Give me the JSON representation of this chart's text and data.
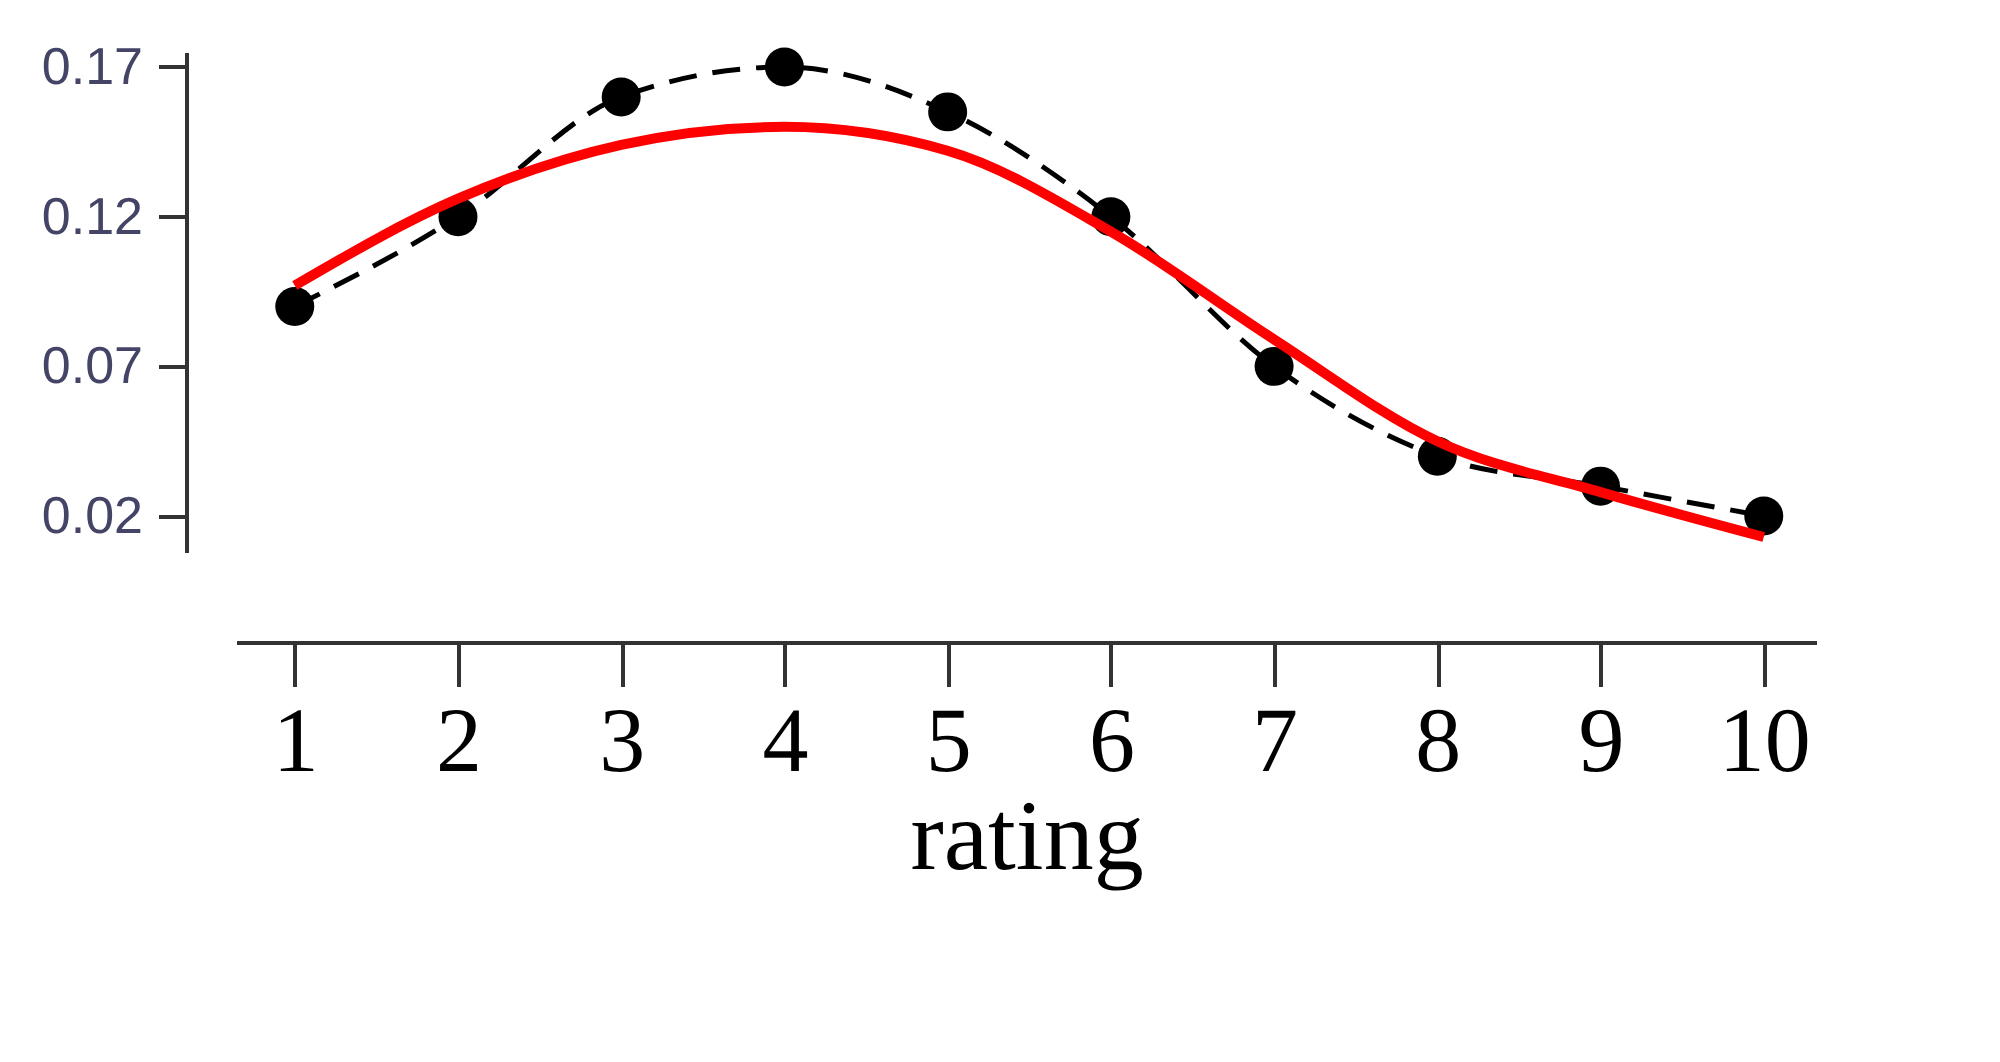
{
  "chart_data": {
    "type": "line",
    "xlabel": "rating",
    "x": [
      1,
      2,
      3,
      4,
      5,
      6,
      7,
      8,
      9,
      10
    ],
    "series": [
      {
        "color": "#000000",
        "line_style": "dashed",
        "marker": "circle",
        "values": [
          0.09,
          0.12,
          0.16,
          0.17,
          0.155,
          0.12,
          0.07,
          0.04,
          0.03,
          0.02
        ]
      },
      {
        "color": "#ff0000",
        "line_style": "solid",
        "marker": "none",
        "values": [
          0.097,
          0.126,
          0.144,
          0.15,
          0.142,
          0.115,
          0.079,
          0.045,
          0.028,
          0.013
        ]
      }
    ],
    "xlim": [
      0.64,
      10.32
    ],
    "xticks": [
      1,
      2,
      3,
      4,
      5,
      6,
      7,
      8,
      9,
      10
    ],
    "ylim": [
      0.008,
      0.175
    ],
    "yticks": [
      0.02,
      0.07,
      0.12,
      0.17
    ],
    "grid": false
  }
}
